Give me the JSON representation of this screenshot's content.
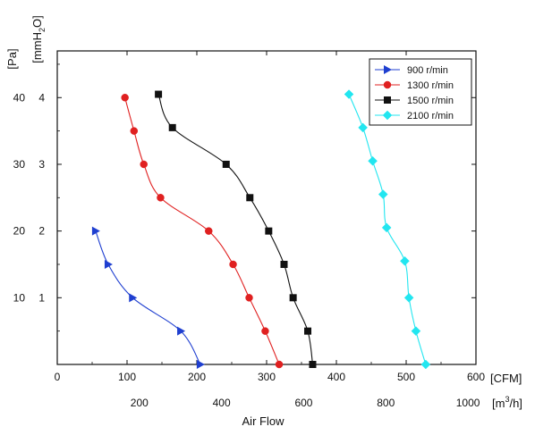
{
  "chart_data": {
    "type": "line",
    "title": "",
    "xlabel": "Air Flow",
    "ylabel": "",
    "x_unit_primary": "[CFM]",
    "x_unit_secondary_base": "[m",
    "x_unit_secondary_sup": "3",
    "x_unit_secondary_tail": "/h]",
    "y_unit_pa": "[Pa]",
    "y_unit_mmh2o_base": "[mmH",
    "y_unit_mmh2o_sub": "2",
    "y_unit_mmh2o_tail": "O]",
    "xlim": [
      0,
      600
    ],
    "ylim": [
      0,
      4.7
    ],
    "x_ticks": [
      0,
      100,
      200,
      300,
      400,
      500,
      600
    ],
    "x_tick_labels": [
      "0",
      "100",
      "200",
      "300",
      "400",
      "500",
      "600"
    ],
    "x2_ticks": [
      200,
      400,
      600,
      800,
      1000
    ],
    "x2_tick_labels": [
      "200",
      "400",
      "600",
      "800",
      "1000"
    ],
    "y_ticks": [
      1,
      2,
      3,
      4
    ],
    "y_tick_labels": [
      "1",
      "2",
      "3",
      "4"
    ],
    "y2_ticks": [
      10,
      20,
      30,
      40
    ],
    "y2_tick_labels": [
      "10",
      "20",
      "30",
      "40"
    ],
    "legend_position": "top-right",
    "grid": false,
    "series": [
      {
        "name": "900 r/min",
        "color": "#1f3fd0",
        "marker": "triangle-right",
        "x": [
          55,
          73,
          108,
          177,
          205
        ],
        "y": [
          2.0,
          1.5,
          1.0,
          0.5,
          0.0
        ]
      },
      {
        "name": "1300 r/min",
        "color": "#e02020",
        "marker": "circle",
        "x": [
          97,
          110,
          124,
          148,
          217,
          252,
          275,
          298,
          318
        ],
        "y": [
          4.0,
          3.5,
          3.0,
          2.5,
          2.0,
          1.5,
          1.0,
          0.5,
          0.0
        ]
      },
      {
        "name": "1500 r/min",
        "color": "#111111",
        "marker": "square",
        "x": [
          145,
          165,
          242,
          276,
          303,
          325,
          338,
          359,
          366
        ],
        "y": [
          4.05,
          3.55,
          3.0,
          2.5,
          2.0,
          1.5,
          1.0,
          0.5,
          0.0
        ]
      },
      {
        "name": "2100 r/min",
        "color": "#22e6f0",
        "marker": "diamond",
        "x": [
          418,
          438,
          452,
          467,
          472,
          498,
          504,
          514,
          528
        ],
        "y": [
          4.05,
          3.55,
          3.05,
          2.55,
          2.05,
          1.55,
          1.0,
          0.5,
          0.0
        ]
      }
    ]
  }
}
